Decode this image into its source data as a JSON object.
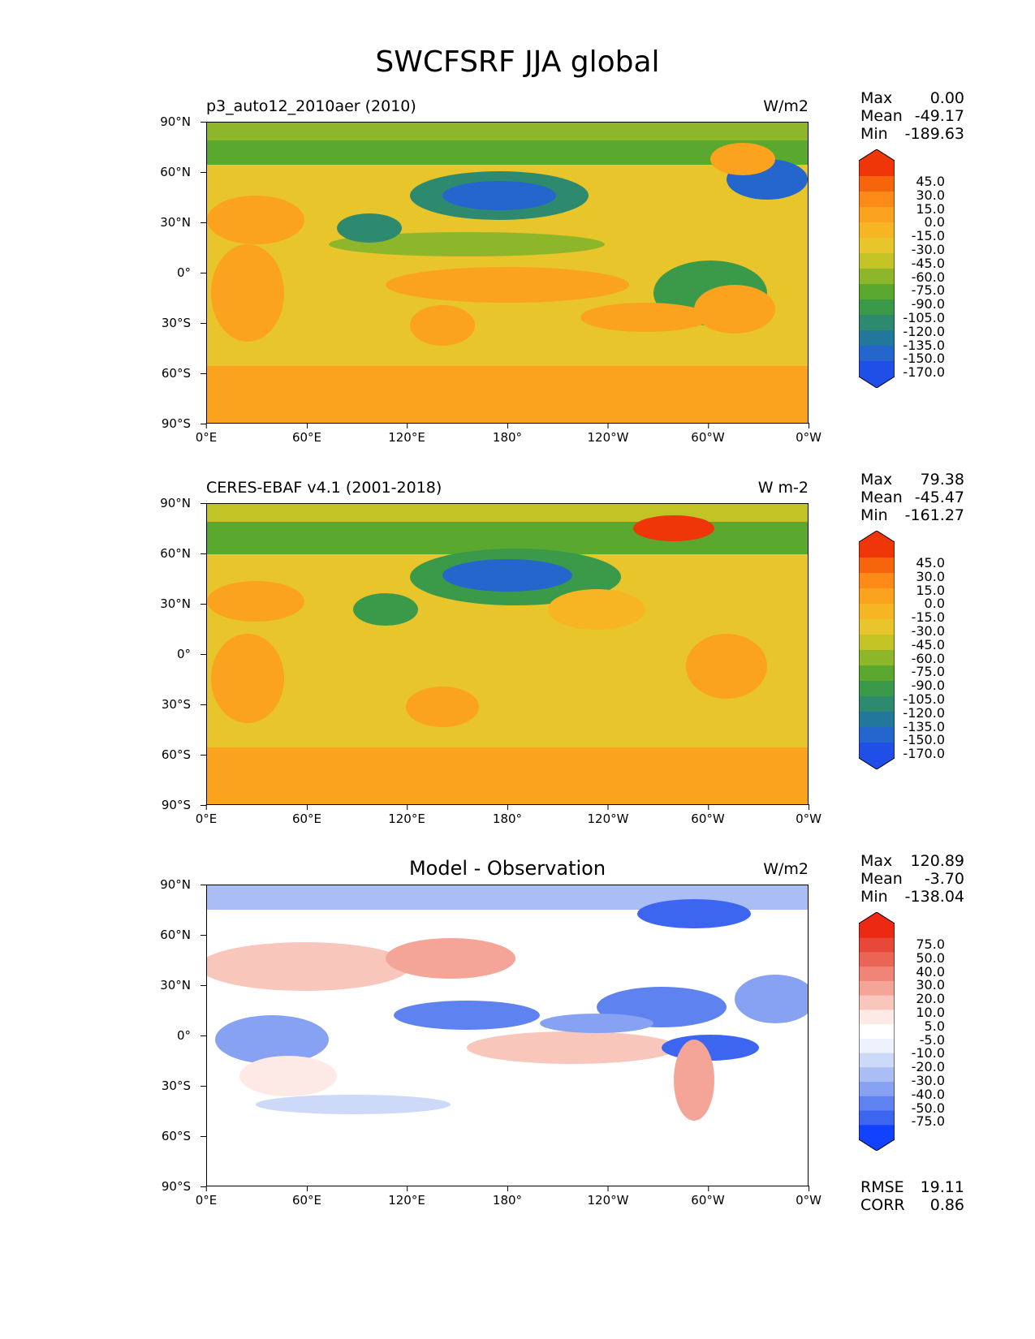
{
  "figure": {
    "title": "SWCFSRF JJA global"
  },
  "axes": {
    "y_ticks": [
      "90°N",
      "60°N",
      "30°N",
      "0°",
      "30°S",
      "60°S",
      "90°S"
    ],
    "x_ticks": [
      "0°E",
      "60°E",
      "120°E",
      "180°",
      "120°W",
      "60°W",
      "0°W"
    ]
  },
  "colors": {
    "abs_scale": [
      "#1f4fe6",
      "#2466cc",
      "#22789a",
      "#2e8a6e",
      "#3a9a4a",
      "#5aa82e",
      "#8db62a",
      "#c2c426",
      "#e8c52a",
      "#f7b524",
      "#fba21e",
      "#fb8a16",
      "#f6640c",
      "#ee3608"
    ],
    "diff_scale": [
      "#1242ff",
      "#3c66f0",
      "#5e82f0",
      "#87a2f2",
      "#aabdf4",
      "#cdd9f8",
      "#eef2fc",
      "#ffffff",
      "#fde9e5",
      "#f9c6bc",
      "#f5a597",
      "#f08477",
      "#eb6556",
      "#e84838",
      "#ec2a14"
    ]
  },
  "panels": [
    {
      "left_title": "p3_auto12_2010aer (2010)",
      "units": "W/m2",
      "stats": {
        "max_label": "Max",
        "max": "0.00",
        "mean_label": "Mean",
        "mean": "-49.17",
        "min_label": "Min",
        "min": "-189.63"
      },
      "colorbar_labels": [
        "45.0",
        "30.0",
        "15.0",
        "0.0",
        "-15.0",
        "-30.0",
        "-45.0",
        "-60.0",
        "-75.0",
        "-90.0",
        "-105.0",
        "-120.0",
        "-135.0",
        "-150.0",
        "-170.0"
      ]
    },
    {
      "left_title": "CERES-EBAF v4.1 (2001-2018)",
      "units": "W m-2",
      "stats": {
        "max_label": "Max",
        "max": "79.38",
        "mean_label": "Mean",
        "mean": "-45.47",
        "min_label": "Min",
        "min": "-161.27"
      },
      "colorbar_labels": [
        "45.0",
        "30.0",
        "15.0",
        "0.0",
        "-15.0",
        "-30.0",
        "-45.0",
        "-60.0",
        "-75.0",
        "-90.0",
        "-105.0",
        "-120.0",
        "-135.0",
        "-150.0",
        "-170.0"
      ]
    },
    {
      "center_title": "Model - Observation",
      "units": "W/m2",
      "stats": {
        "max_label": "Max",
        "max": "120.89",
        "mean_label": "Mean",
        "mean": "-3.70",
        "min_label": "Min",
        "min": "-138.04"
      },
      "colorbar_labels": [
        "75.0",
        "50.0",
        "40.0",
        "30.0",
        "20.0",
        "10.0",
        "5.0",
        "-5.0",
        "-10.0",
        "-20.0",
        "-30.0",
        "-40.0",
        "-50.0",
        "-75.0"
      ],
      "rmse_label": "RMSE",
      "rmse": "19.11",
      "corr_label": "CORR",
      "corr": "0.86"
    }
  ]
}
